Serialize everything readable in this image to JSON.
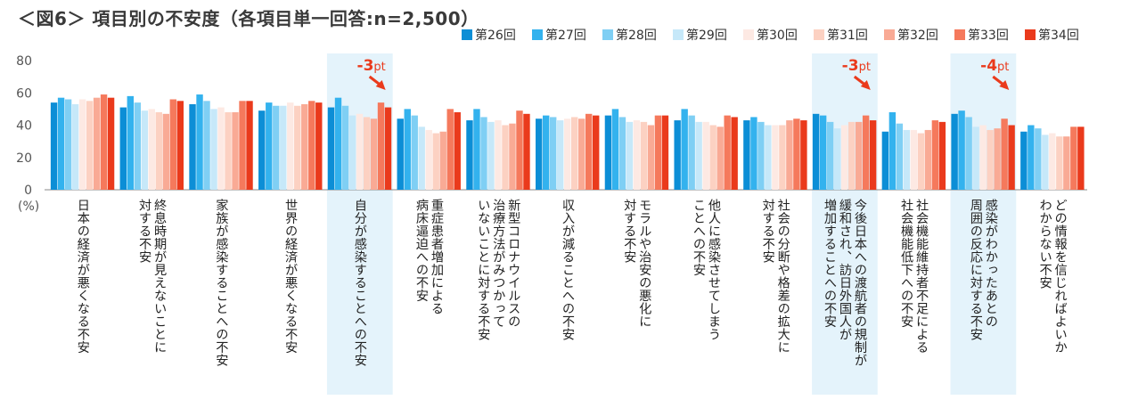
{
  "title": "＜図6＞ 項目別の不安度（各項目単一回答:n=2,500）",
  "chart_data": {
    "type": "bar",
    "title": "＜図6＞ 項目別の不安度（各項目単一回答:n=2,500）",
    "ylabel": "(%)",
    "ylim": [
      0,
      80
    ],
    "yticks": [
      0,
      20,
      40,
      60,
      80
    ],
    "legend_position": "top-right",
    "series": [
      {
        "name": "第26回",
        "color": "#0c8ed6",
        "values": [
          54,
          51,
          53,
          49,
          51,
          44,
          43,
          44,
          46,
          43,
          43,
          47,
          36,
          47,
          36
        ]
      },
      {
        "name": "第27回",
        "color": "#33b2ee",
        "values": [
          57,
          58,
          59,
          54,
          57,
          50,
          50,
          46,
          50,
          50,
          45,
          46,
          48,
          49,
          40
        ]
      },
      {
        "name": "第28回",
        "color": "#7fcff4",
        "values": [
          56,
          54,
          55,
          52,
          52,
          46,
          45,
          45,
          45,
          46,
          42,
          42,
          41,
          45,
          38
        ]
      },
      {
        "name": "第29回",
        "color": "#c6e8f9",
        "values": [
          53,
          49,
          50,
          52,
          46,
          39,
          42,
          43,
          42,
          42,
          40,
          38,
          37,
          39,
          34
        ]
      },
      {
        "name": "第30回",
        "color": "#fde9e3",
        "values": [
          56,
          50,
          51,
          54,
          47,
          37,
          43,
          44,
          43,
          42,
          40,
          40,
          37,
          40,
          35
        ]
      },
      {
        "name": "第31回",
        "color": "#fcd1c2",
        "values": [
          55,
          48,
          48,
          52,
          45,
          35,
          40,
          45,
          42,
          40,
          40,
          42,
          35,
          37,
          33
        ]
      },
      {
        "name": "第32回",
        "color": "#f9aa95",
        "values": [
          57,
          47,
          48,
          53,
          44,
          36,
          41,
          44,
          40,
          39,
          43,
          42,
          37,
          38,
          33
        ]
      },
      {
        "name": "第33回",
        "color": "#f5795c",
        "values": [
          59,
          56,
          55,
          55,
          54,
          50,
          49,
          47,
          46,
          46,
          44,
          46,
          43,
          44,
          39
        ]
      },
      {
        "name": "第34回",
        "color": "#ea3a1c",
        "values": [
          57,
          55,
          55,
          54,
          51,
          48,
          47,
          46,
          46,
          45,
          43,
          43,
          42,
          40,
          39
        ]
      }
    ],
    "categories": [
      "日本の経済が悪くなる不安",
      "終息時期が見えないことに対する不安",
      "家族が感染することへの不安",
      "世界の経済が悪くなる不安",
      "自分が感染することへの不安",
      "重症患者増加による病床逼迫への不安",
      "新型コロナウイルスの治療方法がみつかっていないことに対する不安",
      "収入が減ることへの不安",
      "モラルや治安の悪化に対する不安",
      "他人に感染させてしまうことへの不安",
      "社会の分断や格差の拡大に対する不安",
      "今後日本への渡航者の規制が緩和され、訪日外国人が増加することへの不安",
      "社会機能維持者不足による社会機能低下への不安",
      "感染がわかったあとの周囲の反応に対する不安",
      "どの情報を信じればよいかわからない不安"
    ],
    "category_lines": [
      [
        "日本の経済が悪くなる不安"
      ],
      [
        "終息時期が見えないことに",
        "対する不安"
      ],
      [
        "家族が感染することへの不安"
      ],
      [
        "世界の経済が悪くなる不安"
      ],
      [
        "自分が感染することへの不安"
      ],
      [
        "重症患者増加による",
        "病床逼迫への不安"
      ],
      [
        "新型コロナウイルスの",
        "治療方法がみつかって",
        "いないことに対する不安"
      ],
      [
        "収入が減ることへの不安"
      ],
      [
        "モラルや治安の悪化に",
        "対する不安"
      ],
      [
        "他人に感染させてしまう",
        "ことへの不安"
      ],
      [
        "社会の分断や格差の拡大に",
        "対する不安"
      ],
      [
        "今後日本への渡航者の規制が",
        "緩和され、訪日外国人が",
        "増加することへの不安"
      ],
      [
        "社会機能維持者不足による",
        "社会機能低下への不安"
      ],
      [
        "感染がわかったあとの",
        "周囲の反応に対する不安"
      ],
      [
        "どの情報を信じればよいか",
        "わからない不安"
      ]
    ],
    "highlights": [
      {
        "category_index": 4,
        "change": "-3",
        "unit": "pt"
      },
      {
        "category_index": 11,
        "change": "-3",
        "unit": "pt"
      },
      {
        "category_index": 13,
        "change": "-4",
        "unit": "pt"
      }
    ]
  }
}
